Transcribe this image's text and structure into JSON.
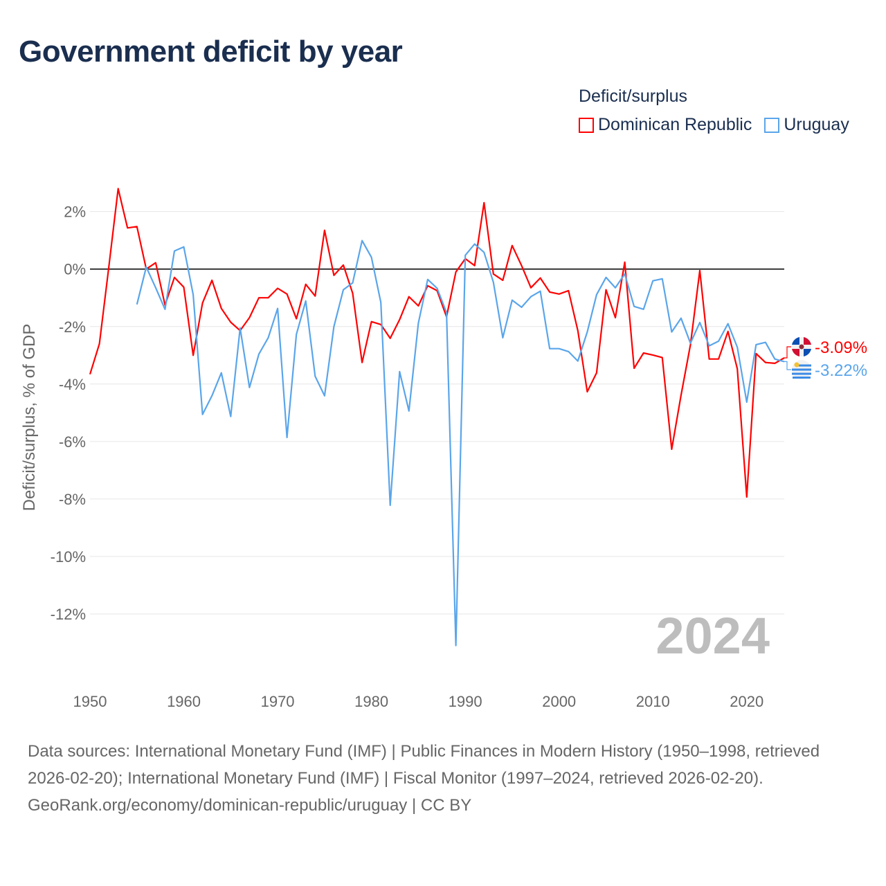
{
  "title": "Government deficit by year",
  "legend_title": "Deficit/surplus",
  "footer": {
    "sources": "Data sources: International Monetary Fund (IMF) | Public Finances in Modern History (1950–1998, retrieved 2026-02-20); International Monetary Fund (IMF) | Fiscal Monitor (1997–2024, retrieved 2026-02-20).",
    "credit": "GeoRank.org/economy/dominican-republic/uruguay | CC BY"
  },
  "chart_data": {
    "type": "line",
    "title": "Government deficit by year",
    "xlabel": "",
    "ylabel": "Deficit/surplus, % of GDP",
    "xlim": [
      1950,
      2024
    ],
    "ylim": [
      -14,
      3.1
    ],
    "x_ticks": [
      1950,
      1960,
      1970,
      1980,
      1990,
      2000,
      2010,
      2020
    ],
    "x_tick_labels": [
      "1950",
      "1960",
      "1970",
      "1980",
      "1990",
      "2000",
      "2010",
      "2020"
    ],
    "y_ticks": [
      2,
      0,
      -2,
      -4,
      -6,
      -8,
      -10,
      -12
    ],
    "y_tick_labels": [
      "2%",
      "0%",
      "-2%",
      "-4%",
      "-6%",
      "-8%",
      "-10%",
      "-12%"
    ],
    "grid": true,
    "legend_position": "top-right",
    "year_watermark": "2024",
    "series": [
      {
        "name": "Dominican Republic",
        "color": "#ff0000",
        "end_label": "-3.09%",
        "flag": "dominican-republic-flag",
        "start_year": 1950,
        "values": [
          -3.66,
          -2.6,
          0.05,
          2.8,
          1.43,
          1.48,
          0,
          0.22,
          -1.25,
          -0.29,
          -0.63,
          -3.0,
          -1.18,
          -0.39,
          -1.37,
          -1.85,
          -2.14,
          -1.69,
          -1.0,
          -1.0,
          -0.67,
          -0.87,
          -1.73,
          -0.53,
          -0.94,
          1.35,
          -0.22,
          0.14,
          -0.84,
          -3.25,
          -1.83,
          -1.93,
          -2.41,
          -1.76,
          -0.96,
          -1.28,
          -0.58,
          -0.75,
          -1.66,
          -0.1,
          0.36,
          0.12,
          2.31,
          -0.17,
          -0.39,
          0.82,
          0.12,
          -0.65,
          -0.31,
          -0.8,
          -0.87,
          -0.75,
          -2.14,
          -4.27,
          -3.61,
          -0.72,
          -1.69,
          0.24,
          -3.45,
          -2.92,
          -2.99,
          -3.08,
          -6.27,
          -4.39,
          -2.63,
          -0.05,
          -3.13,
          -3.13,
          -2.17,
          -3.47,
          -7.93,
          -2.94,
          -3.25,
          -3.28,
          -3.09
        ]
      },
      {
        "name": "Uruguay",
        "color": "#5aa5ea",
        "end_label": "-3.22%",
        "flag": "uruguay-flag",
        "start_year": 1955,
        "values": [
          -1.23,
          0.07,
          -0.65,
          -1.4,
          0.63,
          0.77,
          -0.89,
          -5.06,
          -4.41,
          -3.61,
          -5.13,
          -2.05,
          -4.12,
          -2.96,
          -2.39,
          -1.37,
          -5.86,
          -2.27,
          -1.11,
          -3.73,
          -4.41,
          -2.0,
          -0.72,
          -0.48,
          0.99,
          0.41,
          -1.16,
          -8.22,
          -3.57,
          -4.94,
          -1.88,
          -0.36,
          -0.67,
          -1.52,
          -13.1,
          0.48,
          0.87,
          0.58,
          -0.46,
          -2.39,
          -1.08,
          -1.33,
          -0.96,
          -0.77,
          -2.77,
          -2.77,
          -2.87,
          -3.2,
          -2.19,
          -0.89,
          -0.29,
          -0.65,
          -0.17,
          -1.3,
          -1.4,
          -0.41,
          -0.34,
          -2.19,
          -1.71,
          -2.58,
          -1.86,
          -2.67,
          -2.51,
          -1.9,
          -2.72,
          -4.63,
          -2.63,
          -2.55,
          -3.13,
          -3.22
        ]
      }
    ]
  }
}
